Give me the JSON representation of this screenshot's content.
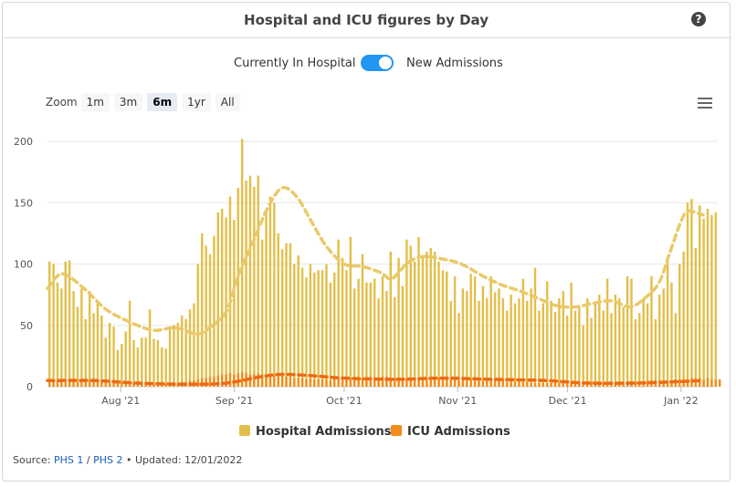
{
  "header": {
    "title": "Hospital and ICU figures by Day"
  },
  "toggle": {
    "left_label": "Currently In Hospital",
    "right_label": "New Admissions"
  },
  "zoom": {
    "label": "Zoom",
    "buttons": [
      "1m",
      "3m",
      "6m",
      "1yr",
      "All"
    ],
    "active": "6m"
  },
  "legend": {
    "items": [
      {
        "label": "Hospital Admissions",
        "color": "#e3bf4a"
      },
      {
        "label": "ICU Admissions",
        "color": "#f28c1a"
      }
    ]
  },
  "footer": {
    "source_label": "Source:",
    "link1": "PHS 1",
    "separator": "/",
    "link2": "PHS 2",
    "bullet": "•",
    "updated": "Updated: 12/01/2022"
  },
  "chart_data": {
    "type": "bar",
    "x_start": "2021-07-12",
    "x_end": "2022-01-11",
    "xticks": [
      {
        "date": "2021-08-01",
        "label": "Aug '21"
      },
      {
        "date": "2021-09-01",
        "label": "Sep '21"
      },
      {
        "date": "2021-10-01",
        "label": "Oct '21"
      },
      {
        "date": "2021-11-01",
        "label": "Nov '21"
      },
      {
        "date": "2021-12-01",
        "label": "Dec '21"
      },
      {
        "date": "2022-01-01",
        "label": "Jan '22"
      }
    ],
    "ylim": [
      0,
      200
    ],
    "yticks": [
      0,
      50,
      100,
      150,
      200
    ],
    "grid": true,
    "legend_position": "bottom",
    "series": [
      {
        "name": "Hospital Admissions",
        "kind": "bar",
        "color": "#e3bf4a",
        "values": [
          102,
          100,
          85,
          80,
          102,
          103,
          78,
          65,
          80,
          55,
          78,
          60,
          69,
          58,
          40,
          52,
          49,
          30,
          35,
          45,
          70,
          38,
          32,
          40,
          40,
          63,
          39,
          38,
          32,
          31,
          48,
          50,
          52,
          58,
          55,
          63,
          68,
          100,
          125,
          115,
          108,
          123,
          142,
          145,
          138,
          155,
          136,
          162,
          202,
          168,
          172,
          163,
          172,
          120,
          143,
          155,
          150,
          125,
          112,
          117,
          117,
          100,
          107,
          97,
          89,
          100,
          93,
          95,
          95,
          100,
          85,
          93,
          120,
          105,
          95,
          122,
          80,
          88,
          108,
          85,
          85,
          88,
          72,
          90,
          78,
          110,
          73,
          105,
          82,
          120,
          115,
          102,
          122,
          105,
          110,
          113,
          110,
          102,
          95,
          94,
          70,
          90,
          60,
          80,
          78,
          92,
          90,
          70,
          82,
          72,
          90,
          77,
          80,
          72,
          62,
          75,
          68,
          72,
          88,
          70,
          80,
          97,
          62,
          68,
          86,
          70,
          61,
          72,
          78,
          58,
          85,
          62,
          65,
          50,
          72,
          56,
          68,
          75,
          62,
          88,
          60,
          75,
          72,
          65,
          90,
          88,
          55,
          60,
          72,
          68,
          90,
          55,
          75,
          80,
          105,
          85,
          60,
          100,
          110,
          150,
          153,
          113,
          148,
          137,
          145,
          140,
          142
        ],
        "peak_label": "202"
      },
      {
        "name": "ICU Admissions",
        "kind": "bar",
        "color": "#f28c1a",
        "values": [
          5,
          6,
          5,
          6,
          4,
          5,
          5,
          4,
          6,
          5,
          5,
          6,
          4,
          5,
          4,
          3,
          3,
          4,
          3,
          2,
          3,
          3,
          2,
          3,
          2,
          3,
          2,
          2,
          3,
          2,
          3,
          3,
          3,
          4,
          4,
          5,
          5,
          6,
          7,
          7,
          8,
          8,
          9,
          10,
          10,
          11,
          10,
          11,
          12,
          11,
          10,
          10,
          11,
          10,
          9,
          9,
          9,
          8,
          9,
          8,
          8,
          7,
          7,
          7,
          6,
          7,
          6,
          6,
          6,
          6,
          5,
          6,
          6,
          6,
          6,
          7,
          7,
          7,
          7,
          8,
          8,
          7,
          7,
          8,
          8,
          7,
          7,
          7,
          7,
          6,
          6,
          6,
          6,
          6,
          7,
          6,
          6,
          7,
          6,
          6,
          6,
          6,
          5,
          6,
          6,
          6,
          5,
          5,
          5,
          5,
          5,
          5,
          5,
          5,
          4,
          5,
          4,
          4,
          4,
          4,
          3,
          3,
          3,
          3,
          3,
          3,
          3,
          3,
          3,
          3,
          3,
          3,
          3,
          3,
          4,
          4,
          4,
          4,
          4,
          4,
          4,
          4,
          4,
          4,
          4,
          4,
          4,
          4,
          4,
          5,
          5,
          5,
          5,
          5,
          5,
          5,
          6,
          6,
          6,
          6,
          7,
          7,
          7,
          6,
          7,
          6,
          6,
          6
        ]
      },
      {
        "name": "Hospital Admissions 7-day average",
        "kind": "dashed-line",
        "color": "#e3bf4a",
        "points": [
          [
            "2021-07-12",
            80
          ],
          [
            "2021-07-16",
            92
          ],
          [
            "2021-07-22",
            80
          ],
          [
            "2021-07-28",
            63
          ],
          [
            "2021-08-04",
            52
          ],
          [
            "2021-08-10",
            46
          ],
          [
            "2021-08-16",
            48
          ],
          [
            "2021-08-22",
            43
          ],
          [
            "2021-08-26",
            50
          ],
          [
            "2021-08-30",
            62
          ],
          [
            "2021-09-02",
            90
          ],
          [
            "2021-09-06",
            117
          ],
          [
            "2021-09-10",
            145
          ],
          [
            "2021-09-14",
            162
          ],
          [
            "2021-09-18",
            155
          ],
          [
            "2021-09-22",
            135
          ],
          [
            "2021-09-26",
            115
          ],
          [
            "2021-10-01",
            100
          ],
          [
            "2021-10-06",
            98
          ],
          [
            "2021-10-11",
            93
          ],
          [
            "2021-10-14",
            88
          ],
          [
            "2021-10-18",
            100
          ],
          [
            "2021-10-22",
            106
          ],
          [
            "2021-10-28",
            104
          ],
          [
            "2021-11-02",
            100
          ],
          [
            "2021-11-08",
            90
          ],
          [
            "2021-11-13",
            83
          ],
          [
            "2021-11-18",
            78
          ],
          [
            "2021-11-23",
            72
          ],
          [
            "2021-11-28",
            66
          ],
          [
            "2021-12-03",
            65
          ],
          [
            "2021-12-08",
            68
          ],
          [
            "2021-12-13",
            70
          ],
          [
            "2021-12-18",
            65
          ],
          [
            "2021-12-22",
            72
          ],
          [
            "2021-12-26",
            85
          ],
          [
            "2021-12-29",
            110
          ],
          [
            "2022-01-01",
            135
          ],
          [
            "2022-01-03",
            143
          ],
          [
            "2022-01-07",
            140
          ]
        ]
      },
      {
        "name": "ICU Admissions 7-day average",
        "kind": "dashed-line",
        "color": "#f28c1a",
        "points": [
          [
            "2021-07-12",
            5
          ],
          [
            "2021-07-25",
            5
          ],
          [
            "2021-08-05",
            3
          ],
          [
            "2021-08-20",
            2
          ],
          [
            "2021-08-30",
            3
          ],
          [
            "2021-09-08",
            8
          ],
          [
            "2021-09-14",
            10
          ],
          [
            "2021-09-22",
            9
          ],
          [
            "2021-10-01",
            7
          ],
          [
            "2021-10-15",
            6
          ],
          [
            "2021-10-28",
            7
          ],
          [
            "2021-11-10",
            6
          ],
          [
            "2021-11-25",
            5
          ],
          [
            "2021-12-06",
            3
          ],
          [
            "2021-12-20",
            3
          ],
          [
            "2021-12-30",
            4
          ],
          [
            "2022-01-07",
            5
          ]
        ]
      }
    ]
  }
}
